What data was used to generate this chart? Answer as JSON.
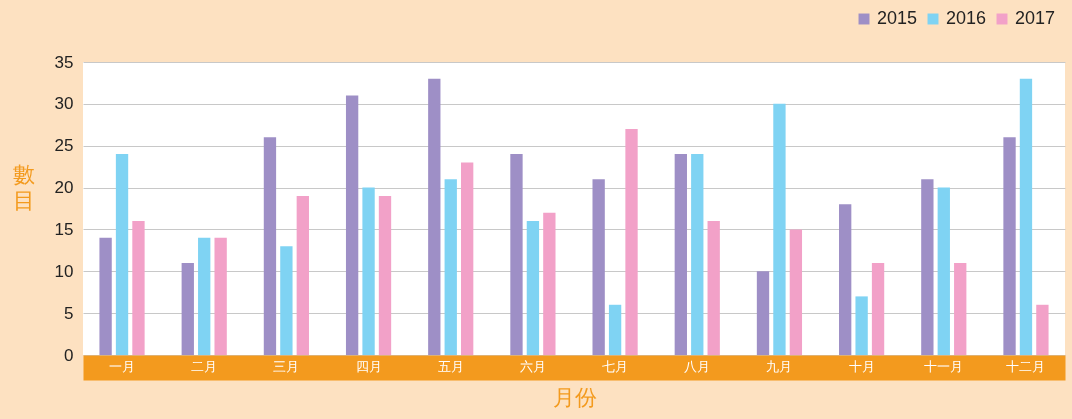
{
  "chart_data": {
    "type": "bar",
    "xlabel": "月份",
    "ylabel": "數目",
    "categories": [
      "一月",
      "二月",
      "三月",
      "四月",
      "五月",
      "六月",
      "七月",
      "八月",
      "九月",
      "十月",
      "十一月",
      "十二月"
    ],
    "series": [
      {
        "name": "2015",
        "color": "#9e8fc6",
        "values": [
          14,
          11,
          26,
          31,
          33,
          24,
          21,
          24,
          10,
          18,
          21,
          26
        ]
      },
      {
        "name": "2016",
        "color": "#7fd3f3",
        "values": [
          24,
          14,
          13,
          20,
          21,
          16,
          6,
          24,
          30,
          7,
          20,
          33
        ]
      },
      {
        "name": "2017",
        "color": "#f2a1c8",
        "values": [
          16,
          14,
          19,
          19,
          23,
          17,
          27,
          16,
          15,
          11,
          11,
          6
        ]
      }
    ],
    "ylim": [
      0,
      35
    ],
    "yticks": [
      0,
      5,
      10,
      15,
      20,
      25,
      30,
      35
    ],
    "grid": "y",
    "legend": "top right"
  }
}
